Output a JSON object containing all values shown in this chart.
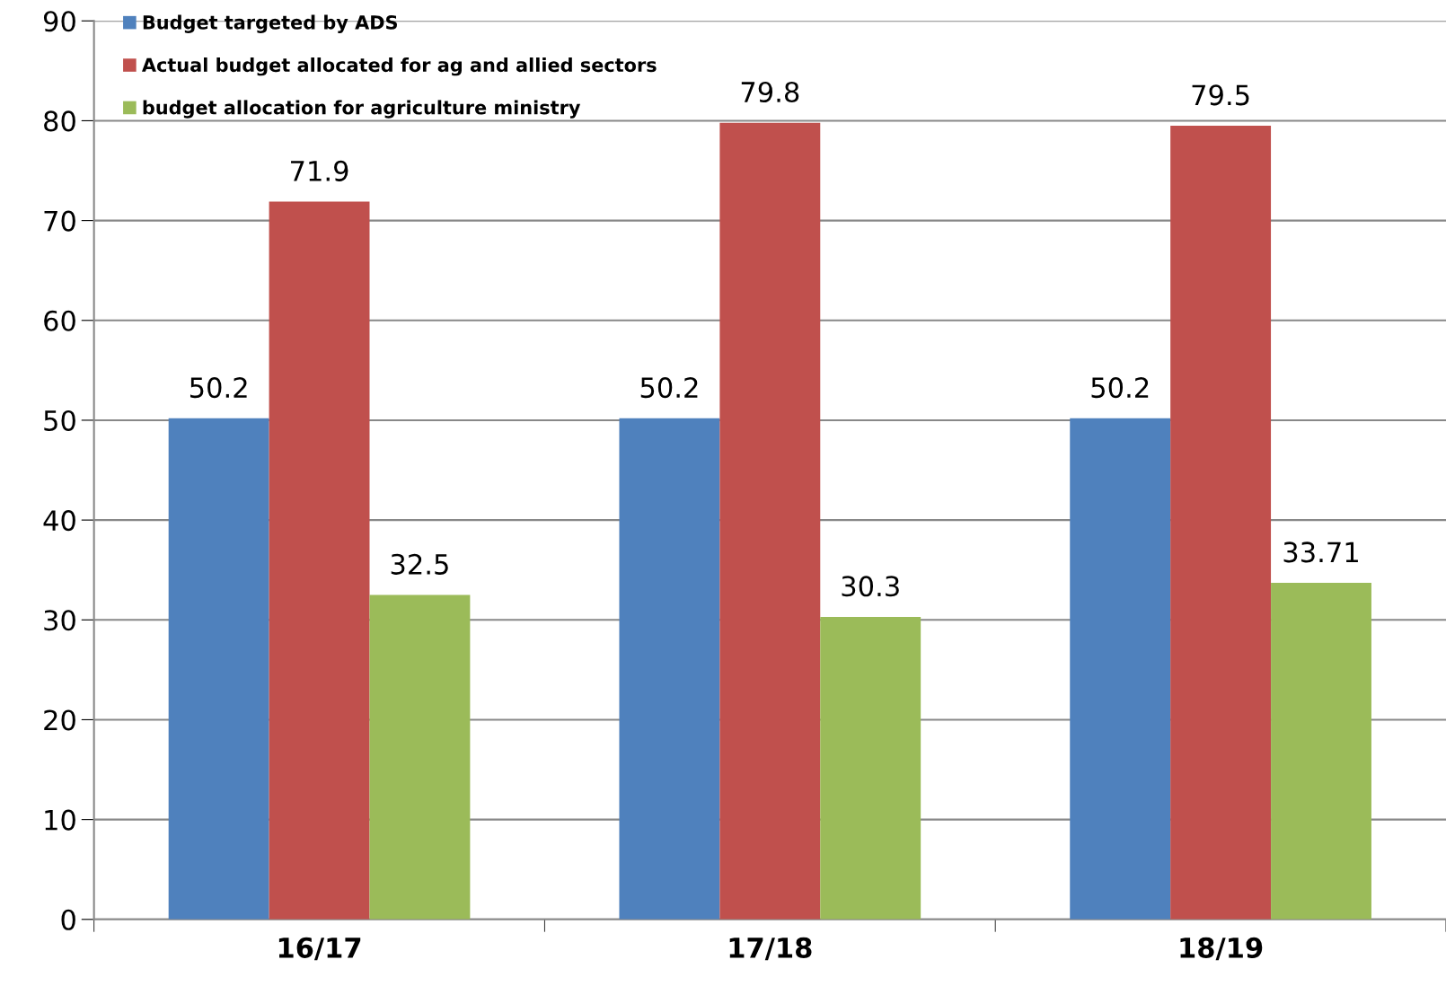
{
  "chart_data": {
    "type": "bar",
    "categories": [
      "16/17",
      "17/18",
      "18/19"
    ],
    "series": [
      {
        "name": "Budget targeted by ADS",
        "color": "#4f81bd",
        "values": [
          50.2,
          50.2,
          50.2
        ]
      },
      {
        "name": "Actual budget allocated for ag and allied sectors",
        "color": "#c0504d",
        "values": [
          71.9,
          79.8,
          79.5
        ]
      },
      {
        "name": "budget allocation for agriculture ministry",
        "color": "#9bbb59",
        "values": [
          32.5,
          30.3,
          33.71
        ]
      }
    ],
    "ylim": [
      0,
      90
    ],
    "yticks": [
      0,
      10,
      20,
      30,
      40,
      50,
      60,
      70,
      80,
      90
    ],
    "grid": "y",
    "legend": "top left",
    "data_labels": true
  }
}
